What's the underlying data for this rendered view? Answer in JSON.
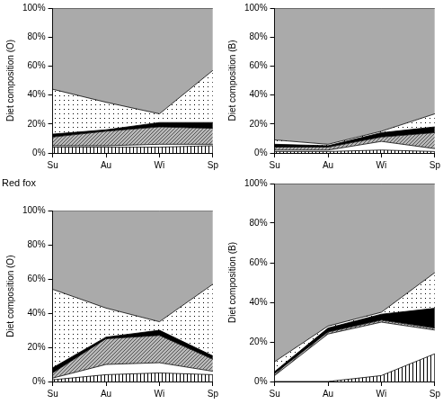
{
  "chart_data": [
    {
      "type": "line",
      "stacked": true,
      "grid": false,
      "ylabel": "Diet composition (O)",
      "categories": [
        "Su",
        "Au",
        "Wi",
        "Sp"
      ],
      "ylim": [
        0,
        100
      ],
      "yticks": [
        {
          "value": 0,
          "label": "0%"
        },
        {
          "value": 20,
          "label": "20%"
        },
        {
          "value": 40,
          "label": "40%"
        },
        {
          "value": 60,
          "label": "60%"
        },
        {
          "value": 80,
          "label": "80%"
        },
        {
          "value": 100,
          "label": "100%"
        }
      ],
      "series": [
        {
          "color": "#000000",
          "values": [
            4,
            4,
            4,
            5
          ]
        },
        {
          "color": "#ffffff",
          "values": [
            1,
            1,
            2,
            1
          ]
        },
        {
          "color": "#555555",
          "values": [
            6,
            10,
            12,
            11
          ]
        },
        {
          "color": "#000000",
          "values": [
            2,
            1,
            3,
            4
          ]
        },
        {
          "color": "#000000",
          "values": [
            31,
            19,
            6,
            36
          ]
        },
        {
          "color": "#aaaaaa",
          "values": [
            56,
            65,
            73,
            43
          ]
        }
      ]
    },
    {
      "type": "line",
      "stacked": true,
      "grid": false,
      "ylabel": "Diet composition (B)",
      "categories": [
        "Su",
        "Au",
        "Wi",
        "Sp"
      ],
      "ylim": [
        0,
        100
      ],
      "yticks": [
        {
          "value": 0,
          "label": "0%"
        },
        {
          "value": 20,
          "label": "20%"
        },
        {
          "value": 40,
          "label": "40%"
        },
        {
          "value": 60,
          "label": "60%"
        },
        {
          "value": 80,
          "label": "80%"
        },
        {
          "value": 100,
          "label": "100%"
        }
      ],
      "series": [
        {
          "color": "#000000",
          "values": [
            1,
            1,
            2,
            1
          ]
        },
        {
          "color": "#ffffff",
          "values": [
            1,
            1,
            6,
            2
          ]
        },
        {
          "color": "#555555",
          "values": [
            2,
            2,
            3,
            11
          ]
        },
        {
          "color": "#000000",
          "values": [
            2,
            1,
            3,
            4
          ]
        },
        {
          "color": "#000000",
          "values": [
            3,
            1,
            1,
            9
          ]
        },
        {
          "color": "#aaaaaa",
          "values": [
            91,
            94,
            85,
            73
          ]
        }
      ]
    },
    {
      "type": "line",
      "stacked": true,
      "grid": false,
      "title": "Red fox",
      "ylabel": "Diet composition (O)",
      "categories": [
        "Su",
        "Au",
        "Wi",
        "Sp"
      ],
      "ylim": [
        0,
        100
      ],
      "yticks": [
        {
          "value": 0,
          "label": "0%"
        },
        {
          "value": 20,
          "label": "20%"
        },
        {
          "value": 40,
          "label": "40%"
        },
        {
          "value": 60,
          "label": "60%"
        },
        {
          "value": 80,
          "label": "80%"
        },
        {
          "value": 100,
          "label": "100%"
        }
      ],
      "series": [
        {
          "color": "#000000",
          "values": [
            1,
            4,
            5,
            4
          ]
        },
        {
          "color": "#ffffff",
          "values": [
            1,
            6,
            6,
            2
          ]
        },
        {
          "color": "#555555",
          "values": [
            3,
            15,
            16,
            7
          ]
        },
        {
          "color": "#000000",
          "values": [
            3,
            1,
            3,
            2
          ]
        },
        {
          "color": "#000000",
          "values": [
            46,
            17,
            5,
            42
          ]
        },
        {
          "color": "#aaaaaa",
          "values": [
            46,
            57,
            65,
            43
          ]
        }
      ]
    },
    {
      "type": "line",
      "stacked": true,
      "grid": false,
      "ylabel": "Diet composition (B)",
      "categories": [
        "Su",
        "Au",
        "Wi",
        "Sp"
      ],
      "ylim": [
        0,
        100
      ],
      "yticks": [
        {
          "value": 0,
          "label": "0%"
        },
        {
          "value": 20,
          "label": "20%"
        },
        {
          "value": 40,
          "label": "40%"
        },
        {
          "value": 60,
          "label": "60%"
        },
        {
          "value": 80,
          "label": "80%"
        },
        {
          "value": 100,
          "label": "100%"
        }
      ],
      "series": [
        {
          "color": "#000000",
          "values": [
            0,
            0,
            3,
            14
          ]
        },
        {
          "color": "#ffffff",
          "values": [
            3,
            24,
            27,
            12
          ]
        },
        {
          "color": "#555555",
          "values": [
            1,
            1,
            1,
            1
          ]
        },
        {
          "color": "#000000",
          "values": [
            1,
            2,
            3,
            10
          ]
        },
        {
          "color": "#000000",
          "values": [
            5,
            1,
            1,
            18
          ]
        },
        {
          "color": "#aaaaaa",
          "values": [
            90,
            72,
            65,
            45
          ]
        }
      ]
    }
  ]
}
